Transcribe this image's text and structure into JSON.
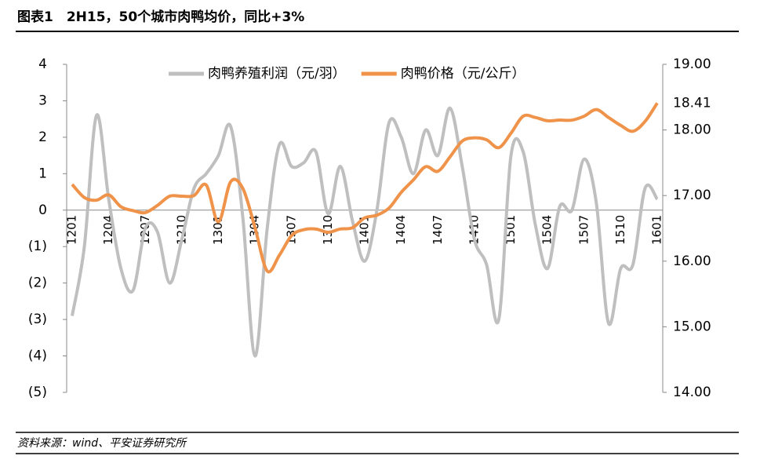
{
  "chart_data": {
    "type": "line",
    "title": "图表1　2H15，50个城市肉鸭均价，同比+3%",
    "source": "资料来源：wind、平安证券研究所",
    "categories": [
      "1201",
      null,
      null,
      "1204",
      null,
      null,
      "1207",
      null,
      null,
      "1210",
      null,
      null,
      "1301",
      null,
      null,
      "1304",
      null,
      null,
      "1307",
      null,
      null,
      "1310",
      null,
      null,
      "1401",
      null,
      null,
      "1404",
      null,
      null,
      "1407",
      null,
      null,
      "1410",
      null,
      null,
      "1501",
      null,
      null,
      "1504",
      null,
      null,
      "1507",
      null,
      null,
      "1510",
      null,
      null,
      "1601"
    ],
    "series": [
      {
        "name": "肉鸭养殖利润（元/羽）",
        "color": "#bfbfbf",
        "axis": "y",
        "values": [
          -2.9,
          -1.0,
          2.6,
          0.3,
          -1.6,
          -2.2,
          -0.5,
          -0.6,
          -2.0,
          -0.8,
          0.6,
          1.0,
          1.5,
          2.3,
          -0.2,
          -4.0,
          -0.5,
          1.8,
          1.2,
          1.3,
          1.6,
          -0.1,
          1.2,
          -0.3,
          -1.4,
          0.0,
          2.4,
          2.0,
          1.0,
          2.2,
          1.5,
          2.8,
          1.2,
          -0.8,
          -1.5,
          -3.0,
          1.5,
          1.6,
          -0.4,
          -1.6,
          0.1,
          0.0,
          1.4,
          0.2,
          -3.1,
          -1.6,
          -1.5,
          0.6,
          0.3
        ]
      },
      {
        "name": "肉鸭价格（元/公斤）",
        "color": "#f0934a",
        "axis": "y2",
        "values": [
          17.17,
          16.97,
          16.93,
          17.01,
          16.83,
          16.77,
          16.74,
          16.85,
          16.99,
          16.99,
          17.0,
          17.16,
          16.6,
          17.21,
          17.11,
          16.51,
          15.85,
          16.09,
          16.39,
          16.48,
          16.49,
          16.44,
          16.49,
          16.51,
          16.66,
          16.7,
          16.81,
          17.05,
          17.24,
          17.44,
          17.37,
          17.59,
          17.83,
          17.88,
          17.85,
          17.73,
          17.95,
          18.21,
          18.19,
          18.14,
          18.15,
          18.15,
          18.21,
          18.31,
          18.19,
          18.07,
          17.98,
          18.13,
          18.41
        ],
        "value_labels": [
          null,
          null,
          null,
          null,
          null,
          null,
          null,
          null,
          null,
          null,
          null,
          null,
          null,
          null,
          null,
          null,
          null,
          null,
          null,
          null,
          null,
          null,
          null,
          null,
          null,
          null,
          null,
          null,
          null,
          null,
          null,
          null,
          null,
          null,
          null,
          null,
          null,
          null,
          null,
          null,
          null,
          null,
          null,
          null,
          null,
          null,
          null,
          null,
          "18.41"
        ]
      }
    ],
    "ylim": [
      -5,
      4
    ],
    "yticks": [
      {
        "value": -5,
        "label": "(5)"
      },
      {
        "value": -4,
        "label": "(4)"
      },
      {
        "value": -3,
        "label": "(3)"
      },
      {
        "value": -2,
        "label": "(2)"
      },
      {
        "value": -1,
        "label": "(1)"
      },
      0,
      1,
      2,
      3,
      4
    ],
    "negative_tick_color": "#c00000",
    "y2lim": [
      14,
      19
    ],
    "y2ticks": [
      {
        "value": 14,
        "label": "14.00"
      },
      {
        "value": 15,
        "label": "15.00"
      },
      {
        "value": 16,
        "label": "16.00"
      },
      {
        "value": 17,
        "label": "17.00"
      },
      {
        "value": 18,
        "label": "18.00"
      },
      {
        "value": 19,
        "label": "19.00"
      }
    ],
    "legend": "top"
  }
}
